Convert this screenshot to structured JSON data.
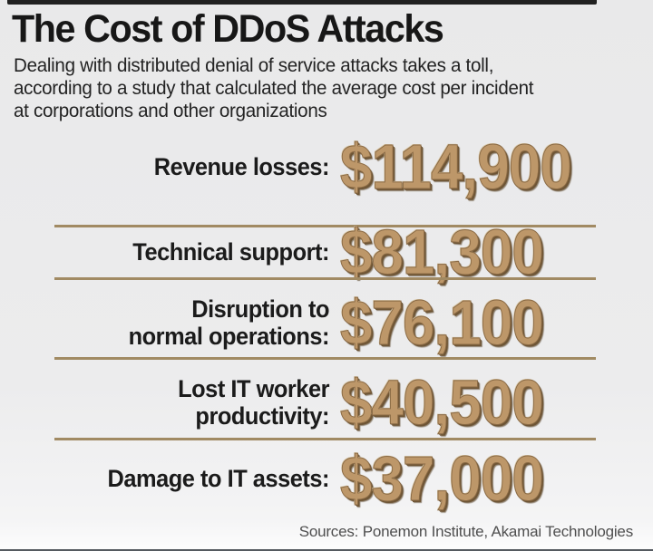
{
  "header": {
    "title": "The Cost of DDoS Attacks",
    "subtitle": "Dealing with distributed denial of service attacks takes a toll,\naccording to a study that calculated the average cost per incident\nat corporations and other organizations"
  },
  "rows": [
    {
      "label": "Revenue losses:",
      "value": "$114,900"
    },
    {
      "label": "Technical support:",
      "value": "$81,300"
    },
    {
      "label": "Disruption to\nnormal operations:",
      "value": "$76,100"
    },
    {
      "label": "Lost IT worker\nproductivity:",
      "value": "$40,500"
    },
    {
      "label": "Damage to IT assets:",
      "value": "$37,000"
    }
  ],
  "footer": {
    "source": "Sources: Ponemon Institute, Akamai Technologies"
  },
  "colors": {
    "value_fill": "#bd9769",
    "value_outline": "#8a6a45",
    "value_shadow": "#6e5535",
    "divider": "#a18a63",
    "text": "#1b1b1b",
    "source_text": "#4f4f4f",
    "background": "#ececec",
    "top_bar": "#212121"
  },
  "chart_data": {
    "type": "table",
    "title": "The Cost of DDoS Attacks",
    "subtitle": "Dealing with distributed denial of service attacks takes a toll, according to a study that calculated the average cost per incident at corporations and other organizations",
    "categories": [
      "Revenue losses",
      "Technical support",
      "Disruption to normal operations",
      "Lost IT worker productivity",
      "Damage to IT assets"
    ],
    "values": [
      114900,
      81300,
      76100,
      40500,
      37000
    ],
    "value_unit": "USD per incident",
    "source": "Sources: Ponemon Institute, Akamai Technologies"
  }
}
